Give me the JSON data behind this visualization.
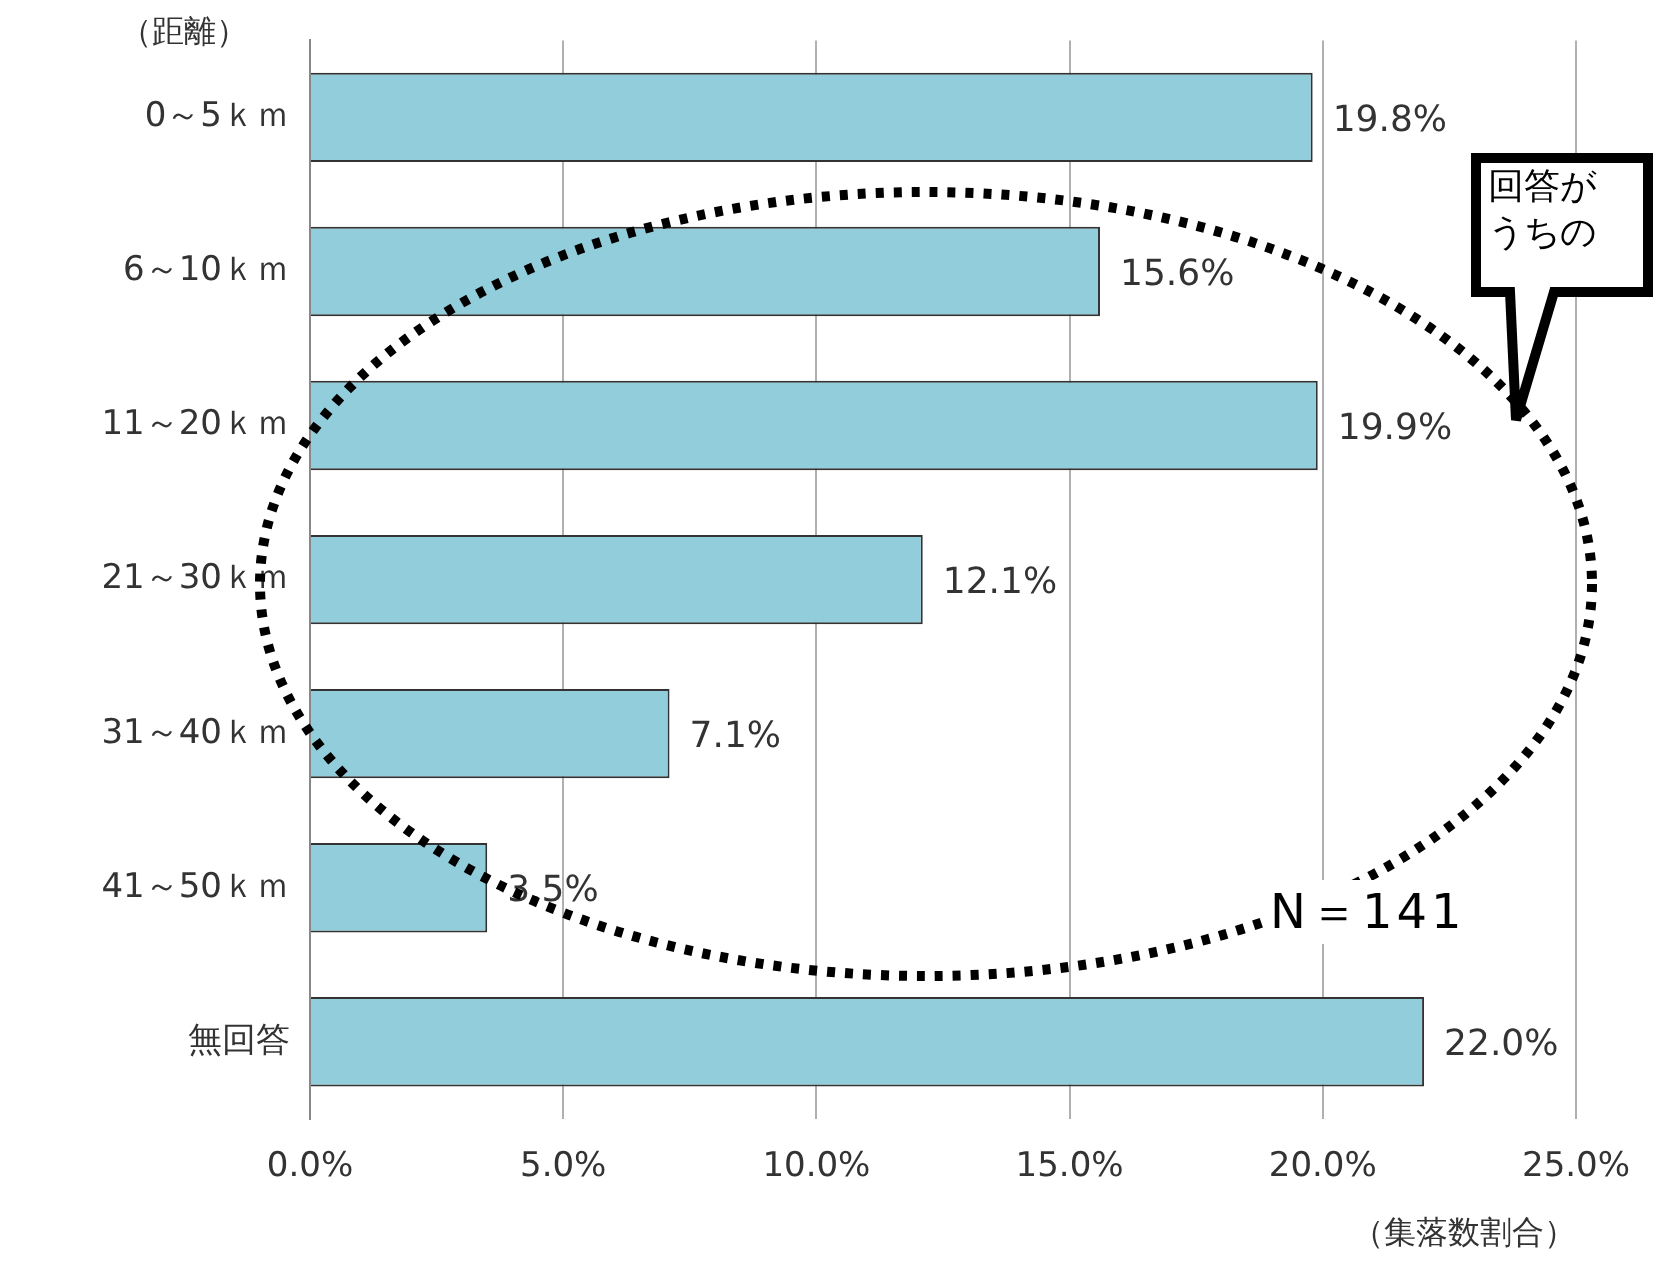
{
  "chart_data": {
    "type": "bar",
    "orientation": "horizontal",
    "ylabel": "（距離）",
    "xlabel": "（集落数割合）",
    "categories": [
      "0～5ｋｍ",
      "6～10ｋｍ",
      "11～20ｋｍ",
      "21～30ｋｍ",
      "31～40ｋｍ",
      "41～50ｋｍ",
      "無回答"
    ],
    "values": [
      19.8,
      15.6,
      19.9,
      12.1,
      7.1,
      3.5,
      22.0
    ],
    "value_labels": [
      "19.8%",
      "15.6%",
      "19.9%",
      "12.1%",
      "7.1%",
      "3.5%",
      "22.0%"
    ],
    "color": "#92cddc",
    "xlim": [
      0,
      25
    ],
    "xticks": [
      {
        "value": 0,
        "label": "0.0%"
      },
      {
        "value": 5,
        "label": "5.0%"
      },
      {
        "value": 10,
        "label": "10.0%"
      },
      {
        "value": 15,
        "label": "15.0%"
      },
      {
        "value": 20,
        "label": "20.0%"
      },
      {
        "value": 25,
        "label": "25.0%"
      }
    ],
    "grid": "x",
    "legend": false,
    "annotations": [
      "N＝141",
      "回答が",
      "うちの"
    ]
  }
}
